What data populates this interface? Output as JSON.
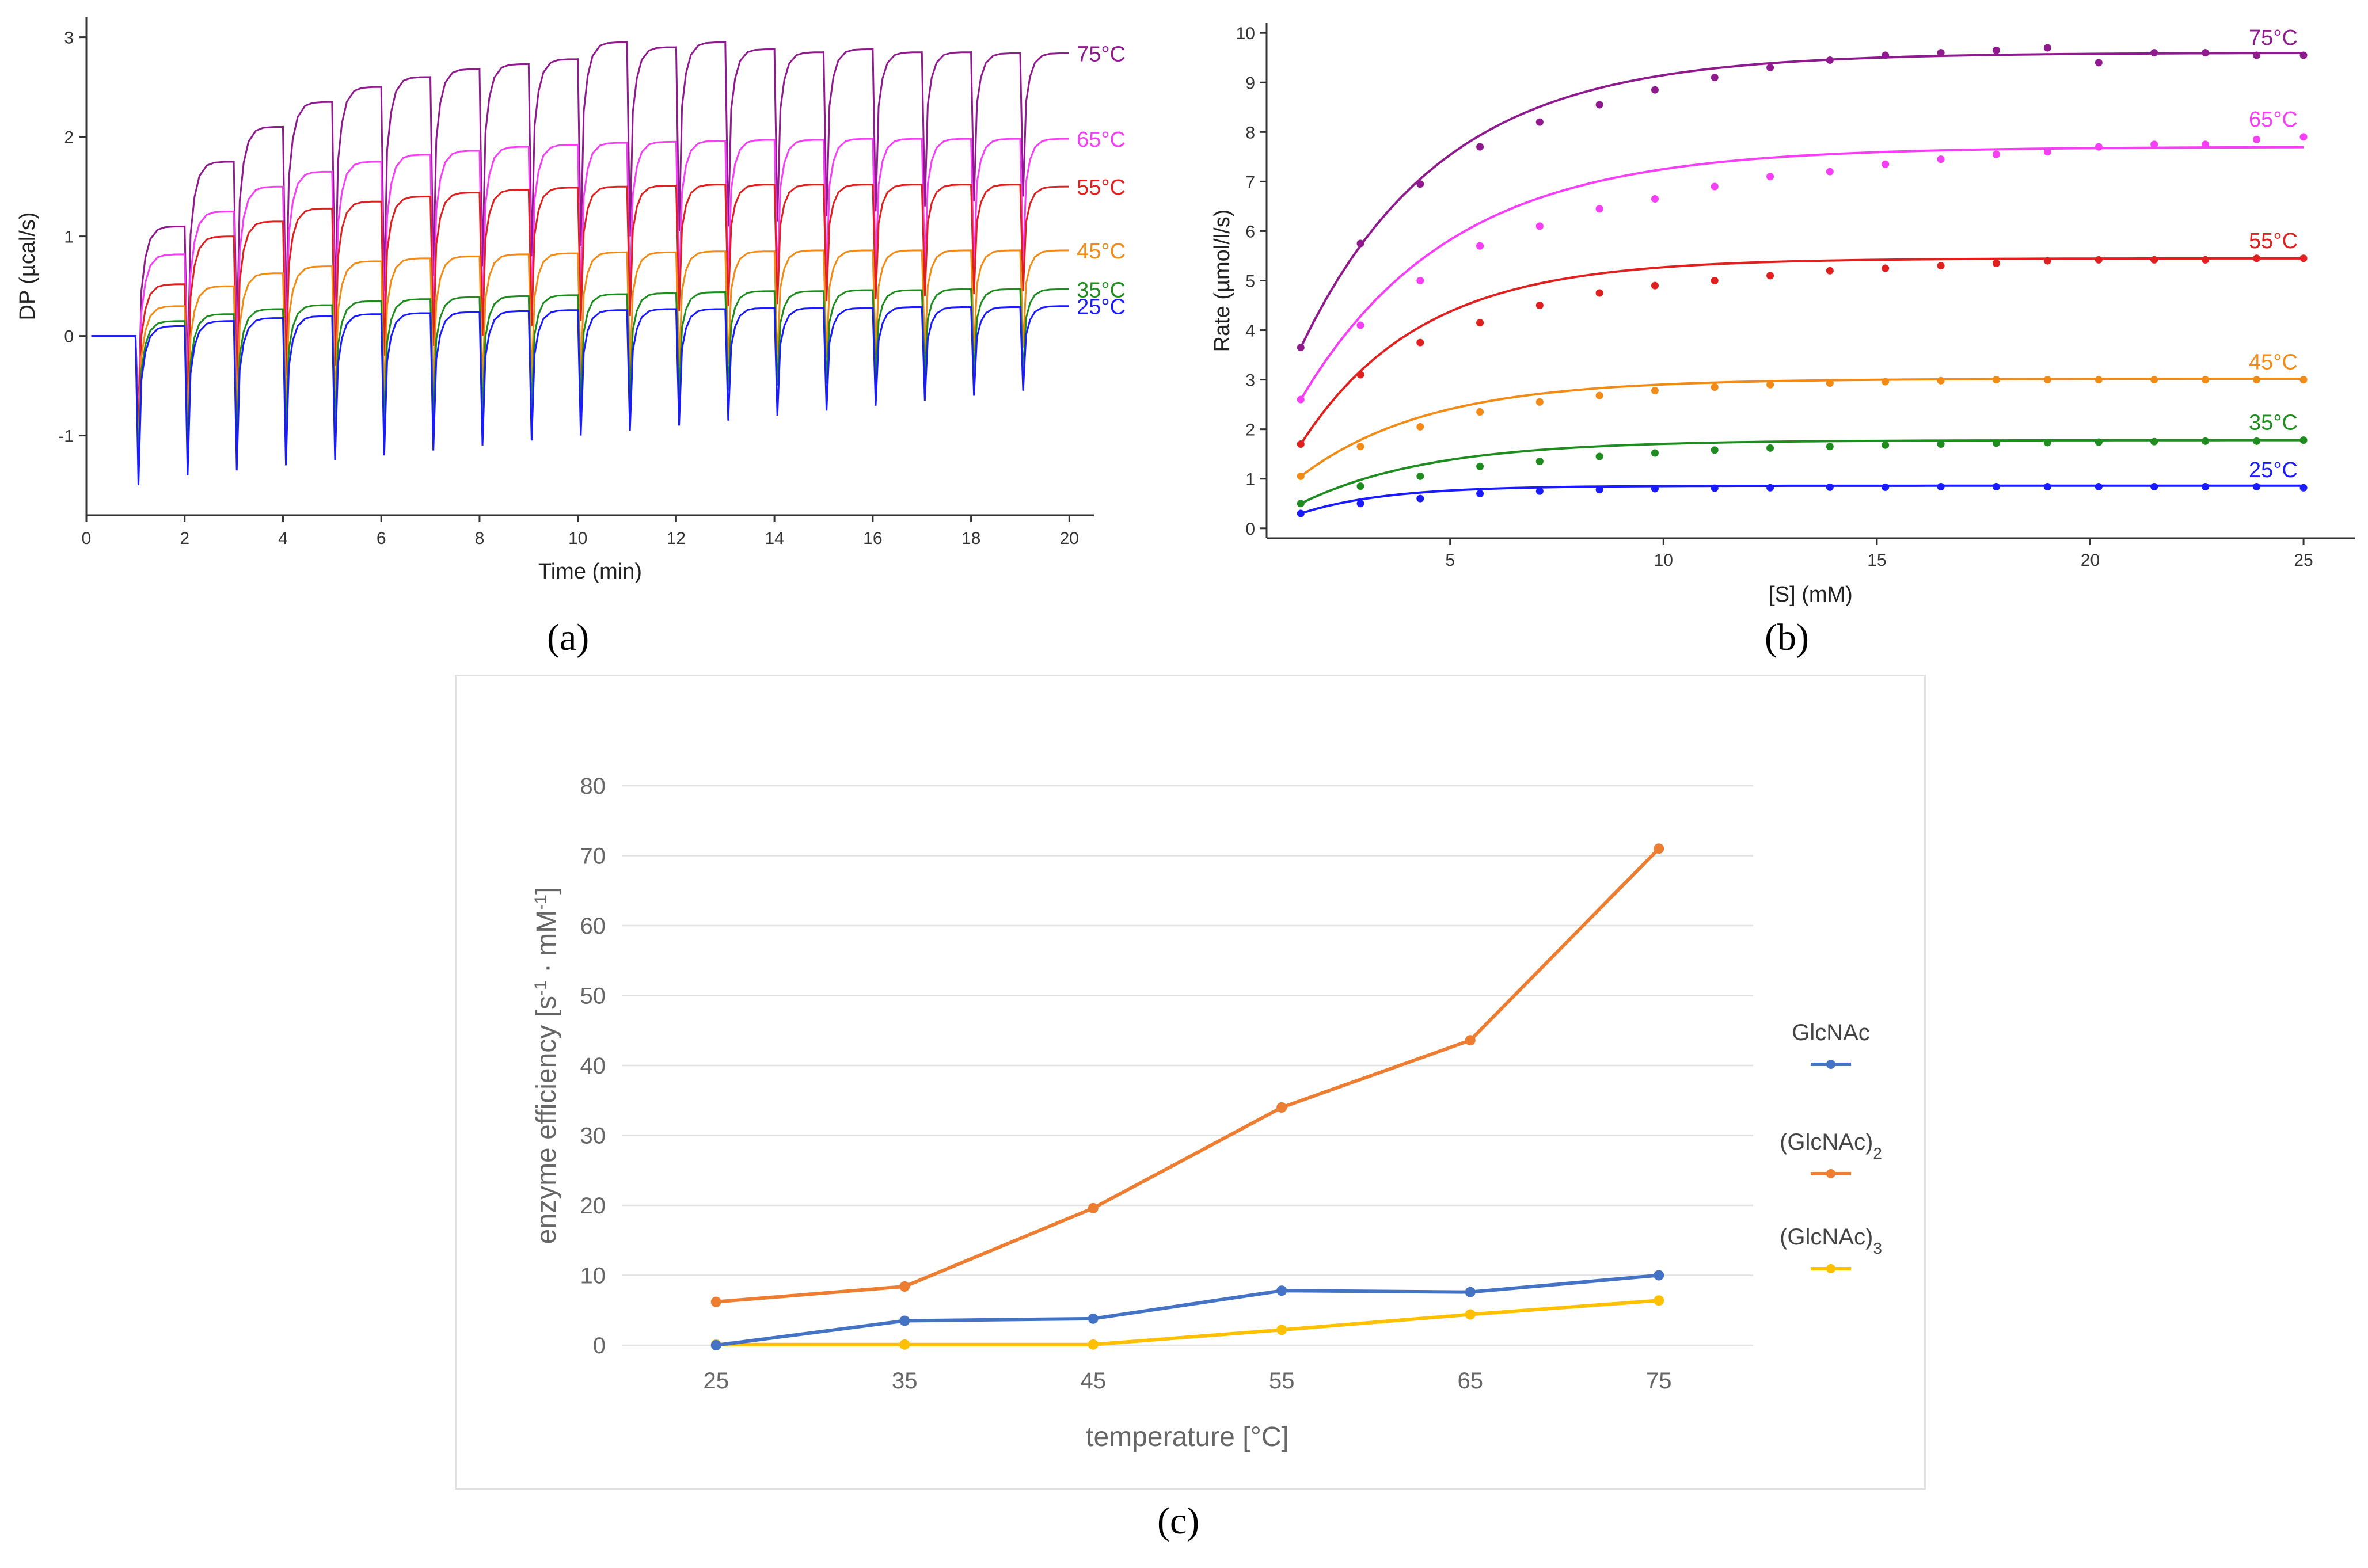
{
  "panel_labels": {
    "a": "(a)",
    "b": "(b)",
    "c": "(c)"
  },
  "colors": {
    "t25": "#1a1aff",
    "t35": "#1e8c1e",
    "t45": "#f28a16",
    "t55": "#e01f1f",
    "t65": "#f53ef5",
    "t75": "#8e1a8e",
    "glcnac": "#4472c4",
    "glcnac2": "#ed7d31",
    "glcnac3": "#ffc000"
  },
  "chart_data": [
    {
      "id": "a",
      "type": "line",
      "xlabel": "Time (min)",
      "ylabel": "DP (µcal/s)",
      "xlim": [
        0,
        20.5
      ],
      "ylim": [
        -1.8,
        3.2
      ],
      "xticks": [
        "0",
        "2",
        "4",
        "6",
        "8",
        "10",
        "12",
        "14",
        "16",
        "18",
        "20"
      ],
      "yticks": [
        "-1",
        "0",
        "1",
        "2",
        "3"
      ],
      "injection_start_min": 1.0,
      "injection_interval_min": 1.0,
      "injection_count": 19,
      "series": [
        {
          "name": "25°C",
          "color_key": "t25",
          "steady_values": [
            0.1,
            0.15,
            0.18,
            0.2,
            0.22,
            0.23,
            0.24,
            0.25,
            0.26,
            0.26,
            0.27,
            0.27,
            0.28,
            0.28,
            0.28,
            0.29,
            0.29,
            0.29,
            0.3
          ],
          "min_values": [
            -1.5,
            -1.4,
            -1.35,
            -1.3,
            -1.25,
            -1.2,
            -1.15,
            -1.1,
            -1.05,
            -1.0,
            -0.95,
            -0.9,
            -0.85,
            -0.8,
            -0.75,
            -0.7,
            -0.65,
            -0.6,
            -0.55
          ]
        },
        {
          "name": "35°C",
          "color_key": "t35",
          "steady_values": [
            0.15,
            0.22,
            0.27,
            0.31,
            0.35,
            0.37,
            0.39,
            0.4,
            0.41,
            0.42,
            0.43,
            0.44,
            0.45,
            0.45,
            0.46,
            0.46,
            0.47,
            0.47,
            0.47
          ],
          "min_values": [
            -1.3,
            -1.2,
            -1.1,
            -1.0,
            -0.95,
            -0.9,
            -0.85,
            -0.8,
            -0.75,
            -0.7,
            -0.65,
            -0.6,
            -0.55,
            -0.5,
            -0.48,
            -0.45,
            -0.42,
            -0.4,
            -0.38
          ]
        },
        {
          "name": "45°C",
          "color_key": "t45",
          "steady_values": [
            0.3,
            0.5,
            0.63,
            0.7,
            0.75,
            0.78,
            0.8,
            0.82,
            0.83,
            0.84,
            0.84,
            0.85,
            0.85,
            0.86,
            0.86,
            0.86,
            0.86,
            0.86,
            0.86
          ],
          "min_values": [
            -1.2,
            -1.0,
            -0.9,
            -0.8,
            -0.7,
            -0.6,
            -0.55,
            -0.5,
            -0.45,
            -0.4,
            -0.35,
            -0.3,
            -0.28,
            -0.25,
            -0.22,
            -0.2,
            -0.18,
            -0.15,
            -0.12
          ]
        },
        {
          "name": "55°C",
          "color_key": "t55",
          "steady_values": [
            0.52,
            1.0,
            1.15,
            1.28,
            1.35,
            1.4,
            1.44,
            1.47,
            1.49,
            1.5,
            1.51,
            1.52,
            1.52,
            1.52,
            1.52,
            1.52,
            1.52,
            1.52,
            1.5
          ],
          "min_values": [
            -1.0,
            -0.8,
            -0.6,
            -0.4,
            -0.3,
            -0.2,
            -0.1,
            0.0,
            0.1,
            0.15,
            0.2,
            0.25,
            0.3,
            0.32,
            0.35,
            0.37,
            0.4,
            0.42,
            0.45
          ]
        },
        {
          "name": "65°C",
          "color_key": "t65",
          "steady_values": [
            0.82,
            1.25,
            1.5,
            1.65,
            1.75,
            1.82,
            1.86,
            1.9,
            1.92,
            1.94,
            1.95,
            1.96,
            1.97,
            1.97,
            1.98,
            1.98,
            1.98,
            1.98,
            1.98
          ],
          "min_values": [
            -0.9,
            -0.6,
            -0.4,
            -0.2,
            -0.1,
            0.0,
            0.1,
            0.2,
            0.3,
            0.35,
            0.4,
            0.45,
            0.5,
            0.55,
            0.6,
            0.62,
            0.65,
            0.68,
            0.7
          ]
        },
        {
          "name": "75°C",
          "color_key": "t75",
          "steady_values": [
            1.1,
            1.75,
            2.1,
            2.35,
            2.5,
            2.6,
            2.68,
            2.73,
            2.78,
            2.95,
            2.9,
            2.95,
            2.88,
            2.85,
            2.88,
            2.85,
            2.85,
            2.84,
            2.84
          ],
          "min_values": [
            -0.8,
            -0.4,
            -0.1,
            0.1,
            0.3,
            0.45,
            0.6,
            0.7,
            0.8,
            0.9,
            1.0,
            1.05,
            1.1,
            1.15,
            1.2,
            1.25,
            1.3,
            1.35,
            1.4
          ]
        }
      ]
    },
    {
      "id": "b",
      "type": "scatter",
      "xlabel": "[S] (mM)",
      "ylabel": "Rate (µmol/l/s)",
      "xlim": [
        0.7,
        26.2
      ],
      "ylim": [
        -0.2,
        10.2
      ],
      "xticks": [
        "5",
        "10",
        "15",
        "20",
        "25"
      ],
      "yticks": [
        "0",
        "1",
        "2",
        "3",
        "4",
        "5",
        "6",
        "7",
        "8",
        "9",
        "10"
      ],
      "x": [
        1.5,
        2.9,
        4.3,
        5.7,
        7.1,
        8.5,
        9.8,
        11.2,
        12.5,
        13.9,
        15.2,
        16.5,
        17.8,
        19.0,
        20.2,
        21.5,
        22.7,
        23.9,
        25.0
      ],
      "series": [
        {
          "name": "25°C",
          "color_key": "t25",
          "values": [
            0.3,
            0.5,
            0.6,
            0.7,
            0.75,
            0.78,
            0.8,
            0.81,
            0.82,
            0.83,
            0.83,
            0.84,
            0.84,
            0.84,
            0.84,
            0.84,
            0.84,
            0.84,
            0.82
          ],
          "Vmax": 0.86,
          "Km": 2.0
        },
        {
          "name": "35°C",
          "color_key": "t35",
          "values": [
            0.5,
            0.85,
            1.05,
            1.25,
            1.35,
            1.45,
            1.52,
            1.58,
            1.62,
            1.65,
            1.68,
            1.7,
            1.72,
            1.73,
            1.74,
            1.75,
            1.76,
            1.76,
            1.78
          ],
          "Vmax": 1.78,
          "Km": 3.0
        },
        {
          "name": "45°C",
          "color_key": "t45",
          "values": [
            1.05,
            1.65,
            2.05,
            2.35,
            2.55,
            2.68,
            2.78,
            2.85,
            2.9,
            2.93,
            2.96,
            2.98,
            3.0,
            3.0,
            3.0,
            3.0,
            3.0,
            3.0,
            3.0
          ],
          "Vmax": 3.02,
          "Km": 3.0
        },
        {
          "name": "55°C",
          "color_key": "t55",
          "values": [
            1.7,
            3.1,
            3.75,
            4.15,
            4.5,
            4.75,
            4.9,
            5.0,
            5.1,
            5.2,
            5.25,
            5.3,
            5.35,
            5.4,
            5.42,
            5.42,
            5.42,
            5.45,
            5.45
          ],
          "Vmax": 5.45,
          "Km": 2.8
        },
        {
          "name": "65°C",
          "color_key": "t65",
          "values": [
            2.6,
            4.1,
            5.0,
            5.7,
            6.1,
            6.45,
            6.65,
            6.9,
            7.1,
            7.2,
            7.35,
            7.45,
            7.55,
            7.6,
            7.7,
            7.75,
            7.75,
            7.85,
            7.9
          ],
          "Vmax": 7.7,
          "Km": 3.5
        },
        {
          "name": "75°C",
          "color_key": "t75",
          "values": [
            3.65,
            5.75,
            6.95,
            7.7,
            8.2,
            8.55,
            8.85,
            9.1,
            9.3,
            9.45,
            9.55,
            9.6,
            9.65,
            9.7,
            9.4,
            9.6,
            9.6,
            9.55,
            9.55
          ],
          "Vmax": 9.6,
          "Km": 3.3
        }
      ]
    },
    {
      "id": "c",
      "type": "line",
      "xlabel": "temperature [°C]",
      "ylabel_prefix": "enzyme efficiency [s",
      "ylabel_sup1": "-1",
      "ylabel_mid": " · mM",
      "ylabel_sup2": "-1",
      "ylabel_suffix": "]",
      "categories": [
        "25",
        "35",
        "45",
        "55",
        "65",
        "75"
      ],
      "ylim": [
        0,
        80
      ],
      "yticks": [
        "0",
        "10",
        "20",
        "30",
        "40",
        "50",
        "60",
        "70",
        "80"
      ],
      "grid": true,
      "legend_position": "right",
      "series": [
        {
          "name": "GlcNAc",
          "sub": "",
          "color_key": "glcnac",
          "values": [
            0,
            3.5,
            3.8,
            7.8,
            7.6,
            10.0
          ]
        },
        {
          "name": "(GlcNAc)",
          "sub": "2",
          "color_key": "glcnac2",
          "values": [
            6.2,
            8.4,
            19.6,
            34.0,
            43.6,
            71.0
          ]
        },
        {
          "name": "(GlcNAc)",
          "sub": "3",
          "color_key": "glcnac3",
          "values": [
            0.1,
            0.1,
            0.1,
            2.2,
            4.4,
            6.4
          ]
        }
      ]
    }
  ]
}
